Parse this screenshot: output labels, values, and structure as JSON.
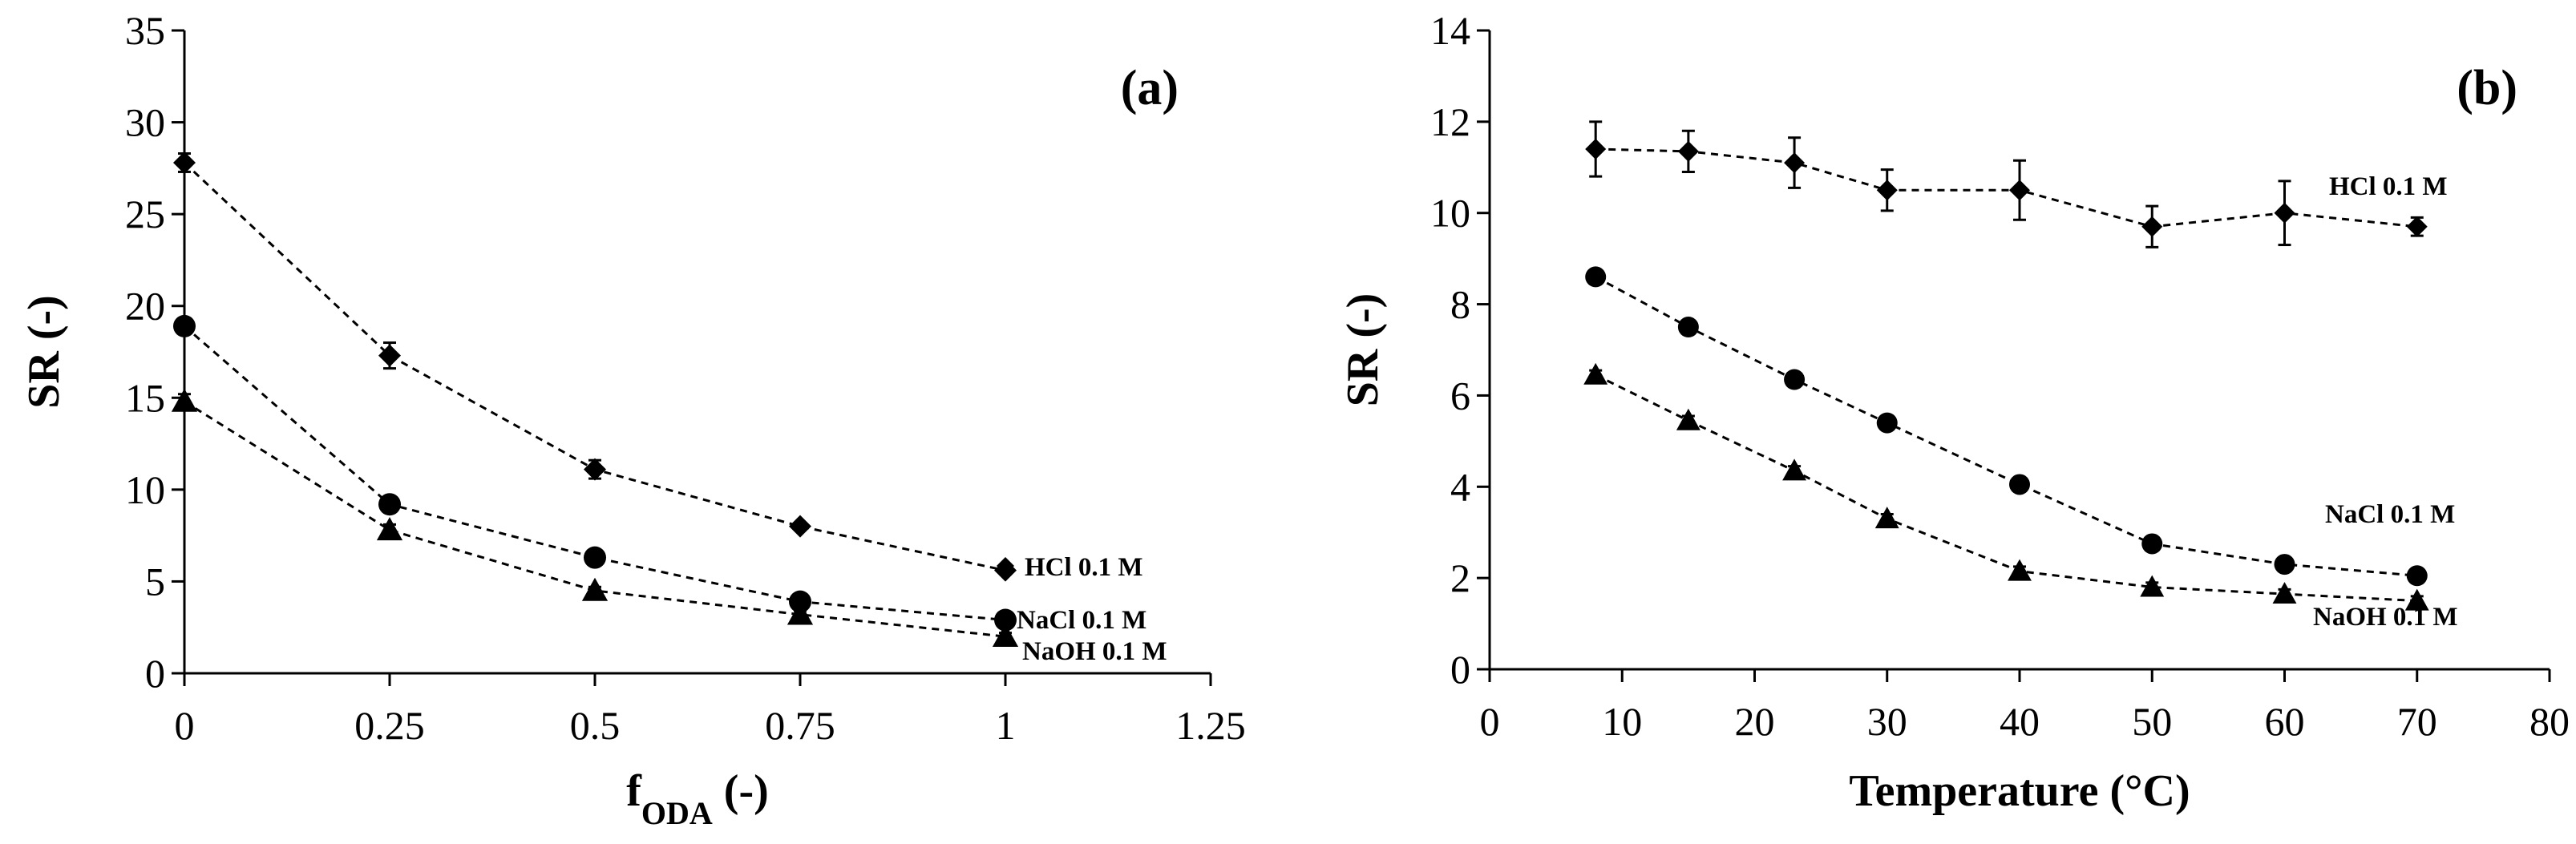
{
  "chart_data": [
    {
      "panel": "(a)",
      "type": "line",
      "xlabel": "f",
      "xlabel_sub": "ODA",
      "xlabel_suffix": " (-)",
      "ylabel": "SR (-)",
      "xlim": [
        0,
        1.25
      ],
      "ylim": [
        0,
        35
      ],
      "xticks": [
        0,
        0.25,
        0.5,
        0.75,
        1,
        1.25
      ],
      "xtick_labels": [
        "0",
        "0.25",
        "0.5",
        "0.75",
        "1",
        "1.25"
      ],
      "yticks": [
        0,
        5,
        10,
        15,
        20,
        25,
        30,
        35
      ],
      "ytick_labels": [
        "0",
        "5",
        "10",
        "15",
        "20",
        "25",
        "30",
        "35"
      ],
      "series": [
        {
          "name": "HCl 0.1 M",
          "marker": "diamond",
          "x": [
            0,
            0.25,
            0.5,
            0.75,
            1
          ],
          "values": [
            27.8,
            17.3,
            11.1,
            8.0,
            5.6
          ],
          "errors": [
            0.5,
            0.7,
            0.5,
            0.2,
            0.2
          ]
        },
        {
          "name": "NaCl 0.1 M",
          "marker": "circle",
          "x": [
            0,
            0.25,
            0.5,
            0.75,
            1
          ],
          "values": [
            18.9,
            9.2,
            6.3,
            3.9,
            2.9
          ],
          "errors": [
            0.3,
            0.3,
            0.2,
            0.2,
            0.2
          ]
        },
        {
          "name": "NaOH 0.1 M",
          "marker": "triangle",
          "x": [
            0,
            0.25,
            0.5,
            0.75,
            1
          ],
          "values": [
            14.8,
            7.8,
            4.5,
            3.2,
            2.0
          ],
          "errors": [
            0.4,
            0.3,
            0.2,
            0.2,
            0.2
          ]
        }
      ]
    },
    {
      "panel": "(b)",
      "type": "line",
      "xlabel": "Temperature (°C)",
      "ylabel": "SR (-)",
      "xlim": [
        0,
        80
      ],
      "ylim": [
        0,
        14
      ],
      "xticks": [
        0,
        10,
        20,
        30,
        40,
        50,
        60,
        70,
        80
      ],
      "xtick_labels": [
        "0",
        "10",
        "20",
        "30",
        "40",
        "50",
        "60",
        "70",
        "80"
      ],
      "yticks": [
        0,
        2,
        4,
        6,
        8,
        10,
        12,
        14
      ],
      "ytick_labels": [
        "0",
        "2",
        "4",
        "6",
        "8",
        "10",
        "12",
        "14"
      ],
      "series": [
        {
          "name": "HCl 0.1 M",
          "marker": "diamond",
          "x": [
            8,
            15,
            23,
            30,
            40,
            50,
            60,
            70
          ],
          "values": [
            11.4,
            11.35,
            11.1,
            10.5,
            10.5,
            9.7,
            10.0,
            9.7
          ],
          "errors": [
            0.6,
            0.45,
            0.55,
            0.45,
            0.65,
            0.45,
            0.7,
            0.2
          ]
        },
        {
          "name": "NaCl 0.1 M",
          "marker": "circle",
          "x": [
            8,
            15,
            23,
            30,
            40,
            50,
            60,
            70
          ],
          "values": [
            8.6,
            7.5,
            6.35,
            5.4,
            4.05,
            2.75,
            2.3,
            2.05
          ],
          "errors": [
            0.1,
            0.1,
            0.1,
            0.1,
            0.1,
            0.1,
            0.1,
            0.1
          ]
        },
        {
          "name": "NaOH 0.1 M",
          "marker": "triangle",
          "x": [
            8,
            15,
            23,
            30,
            40,
            50,
            60,
            70
          ],
          "values": [
            6.45,
            5.45,
            4.35,
            3.3,
            2.15,
            1.8,
            1.65,
            1.5
          ],
          "errors": [
            0.1,
            0.1,
            0.1,
            0.1,
            0.1,
            0.1,
            0.1,
            0.1
          ]
        }
      ]
    }
  ]
}
